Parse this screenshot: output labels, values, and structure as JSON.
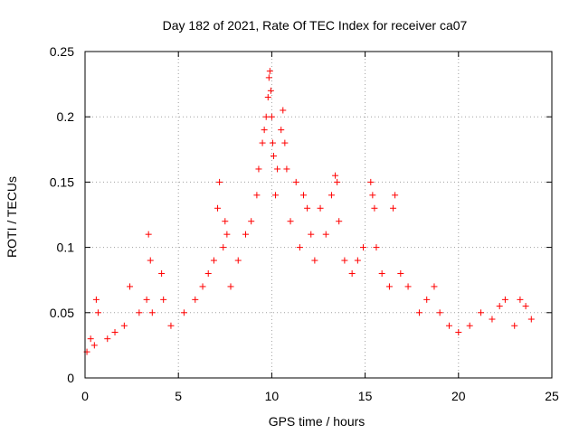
{
  "chart_data": {
    "type": "scatter",
    "title": "Day 182 of 2021, Rate Of TEC Index for receiver ca07",
    "xlabel": "GPS time / hours",
    "ylabel": "ROTI / TECUs",
    "xlim": [
      0,
      25
    ],
    "ylim": [
      0,
      0.25
    ],
    "xticks": [
      0,
      5,
      10,
      15,
      20,
      25
    ],
    "yticks": [
      0,
      0.05,
      0.1,
      0.15,
      0.2,
      0.25
    ],
    "xtick_labels": [
      "0",
      "5",
      "10",
      "15",
      "20",
      "25"
    ],
    "ytick_labels": [
      "0",
      "0.05",
      "0.1",
      "0.15",
      "0.2",
      "0.25"
    ],
    "grid": true,
    "marker": "+",
    "color": "#ff0000",
    "series": [
      {
        "name": "ROTI",
        "x": [
          0.1,
          0.3,
          0.5,
          0.6,
          0.7,
          1.2,
          1.6,
          2.1,
          2.4,
          2.9,
          3.3,
          3.4,
          3.5,
          3.6,
          4.1,
          4.2,
          4.6,
          5.3,
          5.9,
          6.3,
          6.6,
          6.9,
          7.1,
          7.2,
          7.4,
          7.5,
          7.6,
          7.8,
          8.2,
          8.6,
          8.9,
          9.2,
          9.3,
          9.5,
          9.6,
          9.7,
          9.8,
          9.85,
          9.9,
          9.95,
          10.0,
          10.05,
          10.1,
          10.2,
          10.3,
          10.5,
          10.6,
          10.7,
          10.8,
          11.0,
          11.3,
          11.5,
          11.7,
          11.9,
          12.1,
          12.3,
          12.6,
          12.9,
          13.2,
          13.4,
          13.5,
          13.6,
          13.9,
          14.3,
          14.6,
          14.9,
          15.3,
          15.4,
          15.5,
          15.6,
          15.9,
          16.3,
          16.5,
          16.6,
          16.9,
          17.3,
          17.9,
          18.3,
          18.7,
          19.0,
          19.5,
          20.0,
          20.6,
          21.2,
          21.8,
          22.2,
          22.5,
          23.0,
          23.3,
          23.6,
          23.9
        ],
        "y": [
          0.02,
          0.03,
          0.025,
          0.06,
          0.05,
          0.03,
          0.035,
          0.04,
          0.07,
          0.05,
          0.06,
          0.11,
          0.09,
          0.05,
          0.08,
          0.06,
          0.04,
          0.05,
          0.06,
          0.07,
          0.08,
          0.09,
          0.13,
          0.15,
          0.1,
          0.12,
          0.11,
          0.07,
          0.09,
          0.11,
          0.12,
          0.14,
          0.16,
          0.18,
          0.19,
          0.2,
          0.215,
          0.23,
          0.235,
          0.22,
          0.2,
          0.18,
          0.17,
          0.14,
          0.16,
          0.19,
          0.205,
          0.18,
          0.16,
          0.12,
          0.15,
          0.1,
          0.14,
          0.13,
          0.11,
          0.09,
          0.13,
          0.11,
          0.14,
          0.155,
          0.15,
          0.12,
          0.09,
          0.08,
          0.09,
          0.1,
          0.15,
          0.14,
          0.13,
          0.1,
          0.08,
          0.07,
          0.13,
          0.14,
          0.08,
          0.07,
          0.05,
          0.06,
          0.07,
          0.05,
          0.04,
          0.035,
          0.04,
          0.05,
          0.045,
          0.055,
          0.06,
          0.04,
          0.06,
          0.055,
          0.045
        ]
      }
    ]
  }
}
